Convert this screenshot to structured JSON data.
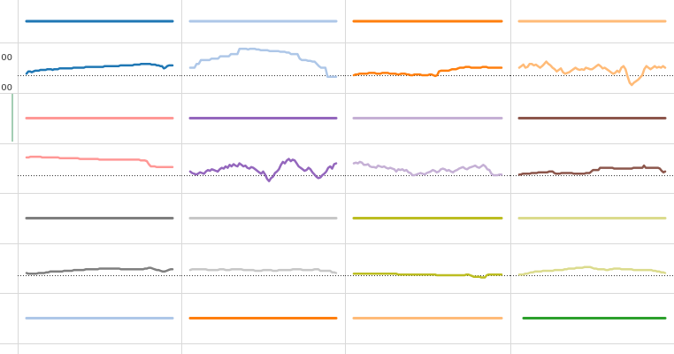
{
  "chart_data": {
    "type": "line",
    "layout": "small-multiples",
    "y_tick_labels": [
      "00",
      "00"
    ],
    "baseline": "dotted",
    "grid": true,
    "panels": [
      {
        "color": "#1f77b4",
        "header_color": "#1f77b4",
        "values": [
          2,
          5,
          5,
          4,
          5,
          6,
          6,
          6,
          7,
          7,
          7,
          7,
          8,
          8,
          8,
          7,
          8,
          8,
          8,
          9,
          9,
          9,
          9,
          9,
          9,
          9,
          9,
          10,
          10,
          10,
          10,
          10,
          10,
          10,
          11,
          11,
          11,
          11,
          11,
          11,
          11,
          11,
          11,
          11,
          11,
          12,
          12,
          12,
          12,
          12,
          12,
          12,
          12,
          12,
          13,
          13,
          13,
          13,
          13,
          13,
          13,
          13,
          14,
          14,
          14,
          14,
          15,
          15,
          15,
          15,
          15,
          15,
          14,
          14,
          14,
          13,
          13,
          12,
          12,
          9,
          10,
          12,
          13,
          13,
          13
        ]
      },
      {
        "color": "#aec7e8",
        "header_color": "#aec7e8",
        "values": [
          10,
          10,
          10,
          15,
          15,
          20,
          20,
          20,
          20,
          20,
          22,
          22,
          22,
          22,
          25,
          25,
          25,
          25,
          25,
          28,
          28,
          28,
          28,
          35,
          35,
          35,
          35,
          34,
          35,
          35,
          35,
          34,
          34,
          33,
          33,
          33,
          33,
          32,
          32,
          32,
          32,
          32,
          31,
          31,
          31,
          30,
          30,
          28,
          28,
          28,
          28,
          22,
          20,
          20,
          20,
          19,
          19,
          18,
          18,
          15,
          12,
          10,
          10,
          10,
          -2,
          -2,
          -2,
          -2,
          -2
        ]
      },
      {
        "color": "#ff7f0e",
        "header_color": "#ff7f0e",
        "values": [
          0,
          1,
          1,
          2,
          2,
          2,
          2,
          2,
          3,
          3,
          3,
          3,
          2,
          2,
          2,
          3,
          3,
          3,
          3,
          2,
          2,
          2,
          2,
          1,
          1,
          2,
          2,
          2,
          1,
          1,
          0,
          0,
          1,
          1,
          1,
          1,
          0,
          0,
          0,
          0,
          1,
          1,
          0,
          -1,
          0,
          5,
          6,
          6,
          6,
          6,
          6,
          7,
          8,
          8,
          8,
          9,
          10,
          10,
          10,
          11,
          11,
          11,
          10,
          10,
          10,
          10,
          10,
          10,
          11,
          11,
          11,
          10,
          10,
          10,
          10,
          10,
          10,
          10,
          10
        ]
      },
      {
        "color": "#ffbb78",
        "header_color": "#ffbb78",
        "values": [
          10,
          12,
          14,
          10,
          11,
          15,
          15,
          13,
          14,
          12,
          10,
          12,
          15,
          18,
          15,
          13,
          10,
          8,
          5,
          7,
          9,
          4,
          2,
          3,
          4,
          6,
          8,
          10,
          8,
          7,
          8,
          7,
          10,
          9,
          8,
          8,
          10,
          12,
          14,
          12,
          9,
          10,
          8,
          6,
          4,
          2,
          3,
          6,
          4,
          10,
          12,
          8,
          -2,
          -10,
          -13,
          -10,
          -8,
          -6,
          -3,
          0,
          8,
          12,
          10,
          8,
          10,
          12,
          10,
          11,
          10,
          12,
          10
        ]
      },
      {
        "color": "#ff9896",
        "header_color": "#ff9896",
        "values": [
          24,
          24,
          25,
          25,
          25,
          25,
          25,
          25,
          24,
          24,
          24,
          24,
          24,
          24,
          24,
          24,
          24,
          23,
          23,
          23,
          23,
          23,
          23,
          23,
          23,
          23,
          23,
          22,
          22,
          22,
          22,
          22,
          22,
          22,
          22,
          22,
          22,
          21,
          21,
          21,
          21,
          21,
          21,
          21,
          21,
          21,
          21,
          21,
          21,
          21,
          21,
          21,
          21,
          21,
          21,
          21,
          21,
          21,
          20,
          20,
          20,
          19,
          15,
          12,
          12,
          12,
          11,
          11,
          11,
          11,
          11,
          11,
          11,
          11,
          11
        ]
      },
      {
        "color": "#9467bd",
        "header_color": "#9467bd",
        "values": [
          5,
          3,
          2,
          1,
          2,
          4,
          3,
          2,
          5,
          7,
          6,
          8,
          7,
          6,
          5,
          8,
          10,
          9,
          12,
          10,
          14,
          12,
          15,
          13,
          12,
          16,
          14,
          12,
          13,
          10,
          9,
          11,
          10,
          8,
          6,
          4,
          2,
          5,
          1,
          -5,
          -8,
          -4,
          -2,
          3,
          5,
          8,
          14,
          18,
          16,
          20,
          22,
          19,
          21,
          20,
          16,
          12,
          10,
          8,
          6,
          7,
          10,
          8,
          4,
          1,
          -2,
          -4,
          -3,
          0,
          2,
          5,
          10,
          12,
          9,
          15,
          16
        ]
      },
      {
        "color": "#c5b0d5",
        "header_color": "#c5b0d5",
        "values": [
          16,
          17,
          16,
          18,
          17,
          14,
          14,
          15,
          12,
          11,
          11,
          10,
          13,
          12,
          11,
          12,
          10,
          9,
          10,
          9,
          8,
          5,
          8,
          7,
          8,
          6,
          7,
          4,
          3,
          0,
          0,
          1,
          2,
          3,
          2,
          1,
          3,
          4,
          5,
          7,
          6,
          4,
          5,
          8,
          9,
          8,
          6,
          7,
          5,
          4,
          6,
          7,
          9,
          10,
          11,
          9,
          8,
          10,
          11,
          12,
          13,
          11,
          10,
          12,
          14,
          12,
          8,
          7,
          2,
          0,
          0,
          0,
          1,
          1
        ]
      },
      {
        "color": "#8c564b",
        "header_color": "#8c564b",
        "values": [
          1,
          1,
          2,
          2,
          2,
          2,
          2,
          3,
          3,
          3,
          3,
          4,
          4,
          4,
          4,
          4,
          4,
          5,
          5,
          5,
          3,
          2,
          2,
          2,
          3,
          3,
          3,
          3,
          3,
          3,
          3,
          2,
          2,
          2,
          2,
          2,
          2,
          2,
          3,
          3,
          3,
          5,
          7,
          7,
          7,
          7,
          10,
          10,
          10,
          10,
          10,
          10,
          10,
          10,
          9,
          9,
          9,
          9,
          9,
          9,
          9,
          9,
          9,
          9,
          9,
          10,
          10,
          10,
          10,
          10,
          10,
          13,
          10,
          10,
          10,
          10,
          10,
          10,
          10,
          10,
          9,
          6,
          4,
          5
        ]
      },
      {
        "color": "#7f7f7f",
        "header_color": "#7f7f7f",
        "values": [
          3,
          2,
          2,
          2,
          2,
          2,
          3,
          3,
          3,
          3,
          4,
          4,
          5,
          5,
          5,
          5,
          5,
          5,
          5,
          6,
          6,
          6,
          6,
          6,
          7,
          7,
          7,
          7,
          7,
          7,
          8,
          8,
          8,
          8,
          8,
          8,
          8,
          9,
          9,
          9,
          9,
          9,
          9,
          9,
          9,
          9,
          9,
          9,
          8,
          8,
          8,
          8,
          8,
          8,
          8,
          8,
          8,
          8,
          8,
          8,
          9,
          9,
          10,
          10,
          9,
          8,
          7,
          7,
          6,
          5,
          5,
          6,
          7,
          8,
          8
        ]
      },
      {
        "color": "#c7c7c7",
        "header_color": "#c7c7c7",
        "values": [
          7,
          8,
          8,
          8,
          8,
          8,
          8,
          8,
          8,
          7,
          7,
          7,
          7,
          7,
          7,
          8,
          8,
          8,
          7,
          7,
          7,
          8,
          8,
          8,
          8,
          8,
          8,
          7,
          7,
          7,
          7,
          7,
          7,
          6,
          6,
          6,
          6,
          7,
          7,
          7,
          7,
          7,
          6,
          6,
          6,
          7,
          7,
          7,
          7,
          7,
          7,
          7,
          8,
          8,
          8,
          8,
          8,
          7,
          7,
          7,
          7,
          7,
          7,
          8,
          8,
          8,
          6,
          6,
          6,
          6,
          6,
          6,
          4,
          4,
          3
        ]
      },
      {
        "color": "#bcbd22",
        "header_color": "#bcbd22",
        "values": [
          2,
          2,
          2,
          2,
          2,
          2,
          2,
          2,
          2,
          2,
          2,
          2,
          2,
          2,
          2,
          2,
          2,
          2,
          2,
          2,
          2,
          2,
          2,
          2,
          1,
          1,
          1,
          1,
          1,
          1,
          1,
          1,
          1,
          1,
          1,
          1,
          1,
          1,
          1,
          1,
          1,
          1,
          1,
          1,
          1,
          0,
          0,
          0,
          0,
          0,
          0,
          0,
          0,
          0,
          0,
          0,
          0,
          0,
          0,
          0,
          0,
          1,
          1,
          0,
          -1,
          -2,
          -2,
          -2,
          -2,
          -3,
          -3,
          -3,
          0,
          1,
          1,
          1,
          1,
          1,
          1,
          1,
          1
        ]
      },
      {
        "color": "#dbdb8d",
        "header_color": "#dbdb8d",
        "values": [
          1,
          1,
          1,
          2,
          2,
          3,
          4,
          4,
          5,
          5,
          5,
          5,
          6,
          6,
          6,
          6,
          6,
          6,
          7,
          7,
          7,
          7,
          7,
          8,
          8,
          9,
          9,
          9,
          9,
          10,
          10,
          10,
          10,
          11,
          11,
          11,
          11,
          10,
          9,
          9,
          8,
          8,
          8,
          8,
          7,
          7,
          8,
          8,
          9,
          9,
          9,
          9,
          8,
          8,
          8,
          8,
          8,
          8,
          7,
          7,
          7,
          7,
          7,
          7,
          7,
          7,
          7,
          7,
          6,
          6,
          5,
          5,
          4,
          4,
          3
        ]
      }
    ],
    "bottom_row_colors": [
      "#aec7e8",
      "#ff7f0e",
      "#ffbb78",
      "#2ca02c"
    ]
  }
}
